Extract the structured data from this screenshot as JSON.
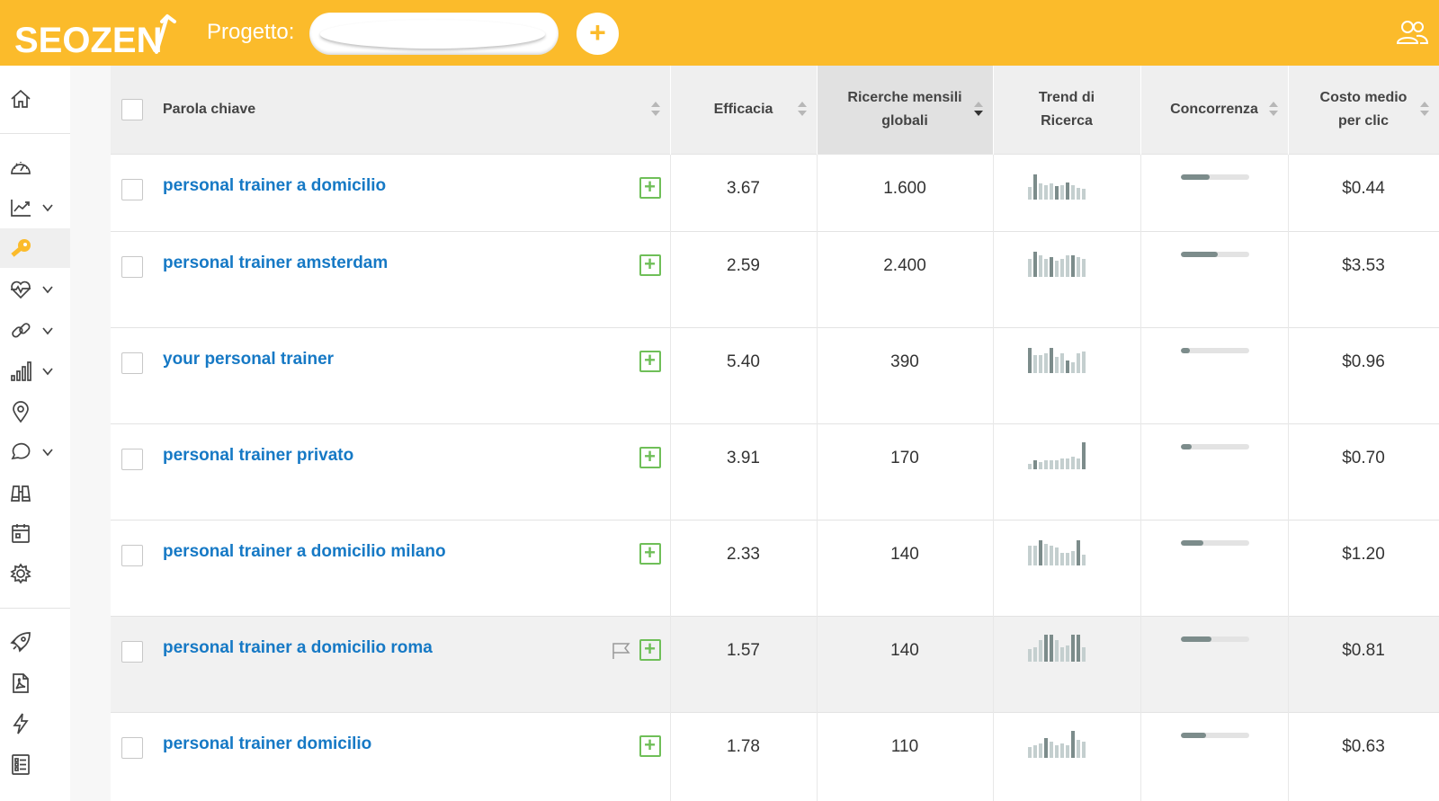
{
  "header": {
    "logo_text": "SEOZEN",
    "project_label": "Progetto:",
    "project_value": "",
    "add_label": "+",
    "accent_color": "#fbbb2b"
  },
  "sidebar": {
    "items": [
      {
        "icon": "home-icon"
      },
      {
        "icon": "dashboard-gauge-icon"
      },
      {
        "icon": "chart-trend-icon",
        "has_chevron": true
      },
      {
        "icon": "key-icon",
        "active": true
      },
      {
        "icon": "heart-pulse-icon",
        "has_chevron": true
      },
      {
        "icon": "link-icon",
        "has_chevron": true
      },
      {
        "icon": "bar-signal-icon",
        "has_chevron": true
      },
      {
        "icon": "location-pin-icon"
      },
      {
        "icon": "chat-bubble-icon",
        "has_chevron": true
      },
      {
        "icon": "binoculars-icon"
      },
      {
        "icon": "calendar-icon"
      },
      {
        "icon": "gear-icon"
      },
      {
        "icon": "rocket-icon"
      },
      {
        "icon": "pdf-file-icon"
      },
      {
        "icon": "lightning-icon"
      },
      {
        "icon": "checklist-icon"
      }
    ]
  },
  "table": {
    "columns": {
      "keyword": "Parola chiave",
      "efficacia": "Efficacia",
      "ricerche_1": "Ricerche mensili",
      "ricerche_2": "globali",
      "trend": "Trend di Ricerca",
      "concorrenza": "Concorrenza",
      "costo_1": "Costo medio",
      "costo_2": "per clic"
    },
    "rows": [
      {
        "keyword": "personal trainer a domicilio",
        "efficacia": "3.67",
        "ricerche": "1.600",
        "competition": 0.43,
        "costo": "$0.44",
        "trend": [
          14,
          28,
          18,
          16,
          18,
          15,
          16,
          19,
          16,
          13,
          12
        ],
        "dark": [
          1,
          5,
          7
        ]
      },
      {
        "keyword": "personal trainer amsterdam",
        "efficacia": "2.59",
        "ricerche": "2.400",
        "competition": 0.55,
        "costo": "$3.53",
        "trend": [
          20,
          28,
          24,
          20,
          22,
          18,
          20,
          24,
          24,
          22,
          20
        ],
        "dark": [
          1,
          4,
          8
        ]
      },
      {
        "keyword": "your personal trainer",
        "efficacia": "5.40",
        "ricerche": "390",
        "competition": 0.14,
        "costo": "$0.96",
        "trend": [
          28,
          20,
          20,
          22,
          28,
          18,
          22,
          14,
          12,
          22,
          24
        ],
        "dark": [
          0,
          4,
          7
        ]
      },
      {
        "keyword": "personal trainer privato",
        "efficacia": "3.91",
        "ricerche": "170",
        "competition": 0.16,
        "costo": "$0.70",
        "trend": [
          6,
          10,
          8,
          10,
          10,
          10,
          12,
          12,
          14,
          12,
          30
        ],
        "dark": [
          1,
          10
        ]
      },
      {
        "keyword": "personal trainer a domicilio milano",
        "efficacia": "2.33",
        "ricerche": "140",
        "competition": 0.33,
        "costo": "$1.20",
        "trend": [
          22,
          22,
          28,
          24,
          22,
          20,
          14,
          14,
          16,
          28,
          12
        ],
        "dark": [
          2,
          9
        ]
      },
      {
        "keyword": "personal trainer a domicilio roma",
        "efficacia": "1.57",
        "ricerche": "140",
        "competition": 0.45,
        "costo": "$0.81",
        "trend": [
          14,
          16,
          24,
          30,
          30,
          24,
          16,
          18,
          30,
          30,
          16
        ],
        "dark": [
          3,
          4,
          8,
          9
        ],
        "highlighted": true,
        "flag": true
      },
      {
        "keyword": "personal trainer domicilio",
        "efficacia": "1.78",
        "ricerche": "110",
        "competition": 0.38,
        "costo": "$0.63",
        "trend": [
          12,
          14,
          16,
          22,
          18,
          14,
          16,
          14,
          30,
          20,
          18
        ],
        "dark": [
          3,
          8
        ]
      }
    ]
  }
}
